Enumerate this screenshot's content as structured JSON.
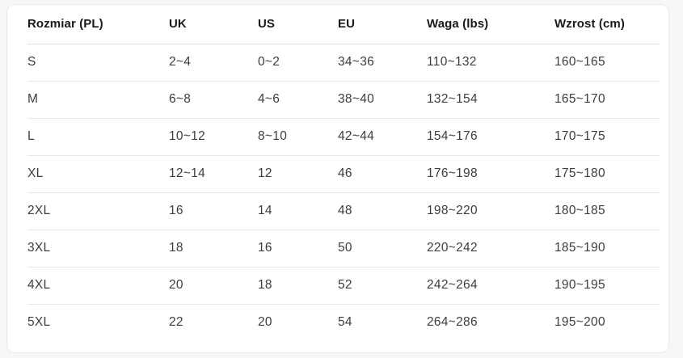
{
  "colors": {
    "page_bg": "#f7f7f8",
    "card_bg": "#ffffff",
    "card_border": "#e9e9eb",
    "row_divider": "#e8e8e8",
    "header_divider": "#dcdcdc",
    "header_text": "#1a1a1a",
    "body_text": "#3d3d3d"
  },
  "size_chart": {
    "columns": [
      "Rozmiar (PL)",
      "UK",
      "US",
      "EU",
      "Waga (lbs)",
      "Wzrost (cm)"
    ],
    "rows": [
      [
        "S",
        "2~4",
        "0~2",
        "34~36",
        "110~132",
        "160~165"
      ],
      [
        "M",
        "6~8",
        "4~6",
        "38~40",
        "132~154",
        "165~170"
      ],
      [
        "L",
        "10~12",
        "8~10",
        "42~44",
        "154~176",
        "170~175"
      ],
      [
        "XL",
        "12~14",
        "12",
        "46",
        "176~198",
        "175~180"
      ],
      [
        "2XL",
        "16",
        "14",
        "48",
        "198~220",
        "180~185"
      ],
      [
        "3XL",
        "18",
        "16",
        "50",
        "220~242",
        "185~190"
      ],
      [
        "4XL",
        "20",
        "18",
        "52",
        "242~264",
        "190~195"
      ],
      [
        "5XL",
        "22",
        "20",
        "54",
        "264~286",
        "195~200"
      ]
    ]
  }
}
